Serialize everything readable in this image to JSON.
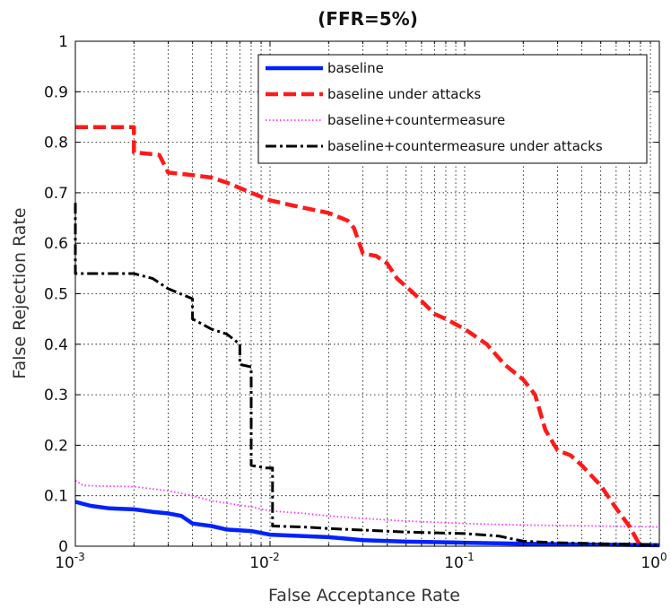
{
  "chart_data": {
    "type": "line",
    "title": "(FFR=5%)",
    "xlabel": "False Acceptance Rate",
    "ylabel": "False Rejection Rate",
    "x_scale": "log",
    "xlim": [
      0.001,
      1
    ],
    "ylim": [
      0,
      1
    ],
    "grid": true,
    "legend_position": "top-right",
    "x_ticks": [
      {
        "value": 0.001,
        "base": "10",
        "exp": "-3"
      },
      {
        "value": 0.01,
        "base": "10",
        "exp": "-2"
      },
      {
        "value": 0.1,
        "base": "10",
        "exp": "-1"
      },
      {
        "value": 1,
        "base": "10",
        "exp": "0"
      }
    ],
    "y_ticks": [
      {
        "value": 0,
        "label": "0"
      },
      {
        "value": 0.1,
        "label": "0.1"
      },
      {
        "value": 0.2,
        "label": "0.2"
      },
      {
        "value": 0.3,
        "label": "0.3"
      },
      {
        "value": 0.4,
        "label": "0.4"
      },
      {
        "value": 0.5,
        "label": "0.5"
      },
      {
        "value": 0.6,
        "label": "0.6"
      },
      {
        "value": 0.7,
        "label": "0.7"
      },
      {
        "value": 0.8,
        "label": "0.8"
      },
      {
        "value": 0.9,
        "label": "0.9"
      },
      {
        "value": 1,
        "label": "1"
      }
    ],
    "series": [
      {
        "name": "baseline",
        "color": "#0022ff",
        "style": "solid",
        "points": [
          [
            0.001,
            0.088
          ],
          [
            0.0012,
            0.08
          ],
          [
            0.0015,
            0.075
          ],
          [
            0.002,
            0.073
          ],
          [
            0.0025,
            0.068
          ],
          [
            0.003,
            0.065
          ],
          [
            0.0035,
            0.06
          ],
          [
            0.004,
            0.045
          ],
          [
            0.005,
            0.04
          ],
          [
            0.006,
            0.033
          ],
          [
            0.008,
            0.03
          ],
          [
            0.01,
            0.023
          ],
          [
            0.015,
            0.02
          ],
          [
            0.02,
            0.018
          ],
          [
            0.03,
            0.012
          ],
          [
            0.05,
            0.009
          ],
          [
            0.1,
            0.007
          ],
          [
            0.2,
            0.005
          ],
          [
            0.5,
            0.003
          ],
          [
            1,
            0.002
          ]
        ]
      },
      {
        "name": "baseline under attacks",
        "color": "#ff1a1a",
        "style": "dashed",
        "points": [
          [
            0.001,
            0.83
          ],
          [
            0.002,
            0.83
          ],
          [
            0.002,
            0.78
          ],
          [
            0.0027,
            0.775
          ],
          [
            0.003,
            0.74
          ],
          [
            0.004,
            0.735
          ],
          [
            0.005,
            0.73
          ],
          [
            0.006,
            0.72
          ],
          [
            0.008,
            0.7
          ],
          [
            0.01,
            0.685
          ],
          [
            0.013,
            0.675
          ],
          [
            0.015,
            0.67
          ],
          [
            0.02,
            0.66
          ],
          [
            0.025,
            0.645
          ],
          [
            0.027,
            0.63
          ],
          [
            0.03,
            0.58
          ],
          [
            0.035,
            0.575
          ],
          [
            0.04,
            0.56
          ],
          [
            0.045,
            0.53
          ],
          [
            0.055,
            0.5
          ],
          [
            0.07,
            0.46
          ],
          [
            0.08,
            0.45
          ],
          [
            0.1,
            0.43
          ],
          [
            0.13,
            0.4
          ],
          [
            0.16,
            0.36
          ],
          [
            0.2,
            0.33
          ],
          [
            0.23,
            0.3
          ],
          [
            0.26,
            0.23
          ],
          [
            0.3,
            0.19
          ],
          [
            0.35,
            0.18
          ],
          [
            0.4,
            0.16
          ],
          [
            0.5,
            0.12
          ],
          [
            0.6,
            0.075
          ],
          [
            0.7,
            0.04
          ],
          [
            0.8,
            0.0
          ]
        ]
      },
      {
        "name": "baseline+countermeasure",
        "color": "#ff33ff",
        "style": "dotted",
        "points": [
          [
            0.001,
            0.13
          ],
          [
            0.0011,
            0.12
          ],
          [
            0.002,
            0.118
          ],
          [
            0.003,
            0.11
          ],
          [
            0.004,
            0.1
          ],
          [
            0.005,
            0.09
          ],
          [
            0.006,
            0.085
          ],
          [
            0.008,
            0.078
          ],
          [
            0.01,
            0.07
          ],
          [
            0.015,
            0.065
          ],
          [
            0.02,
            0.06
          ],
          [
            0.03,
            0.055
          ],
          [
            0.05,
            0.05
          ],
          [
            0.1,
            0.045
          ],
          [
            0.2,
            0.042
          ],
          [
            0.5,
            0.04
          ],
          [
            1,
            0.038
          ]
        ]
      },
      {
        "name": "baseline+countermeasure under attacks",
        "color": "#000000",
        "style": "dashdot",
        "points": [
          [
            0.001,
            0.68
          ],
          [
            0.001,
            0.54
          ],
          [
            0.002,
            0.54
          ],
          [
            0.0025,
            0.53
          ],
          [
            0.003,
            0.51
          ],
          [
            0.004,
            0.49
          ],
          [
            0.004,
            0.45
          ],
          [
            0.005,
            0.43
          ],
          [
            0.006,
            0.42
          ],
          [
            0.007,
            0.4
          ],
          [
            0.007,
            0.36
          ],
          [
            0.008,
            0.355
          ],
          [
            0.008,
            0.16
          ],
          [
            0.0095,
            0.155
          ],
          [
            0.0103,
            0.155
          ],
          [
            0.0103,
            0.04
          ],
          [
            0.015,
            0.038
          ],
          [
            0.02,
            0.035
          ],
          [
            0.03,
            0.032
          ],
          [
            0.05,
            0.028
          ],
          [
            0.1,
            0.025
          ],
          [
            0.15,
            0.02
          ],
          [
            0.2,
            0.01
          ],
          [
            0.3,
            0.007
          ],
          [
            0.5,
            0.005
          ],
          [
            1,
            0.003
          ]
        ]
      }
    ]
  }
}
